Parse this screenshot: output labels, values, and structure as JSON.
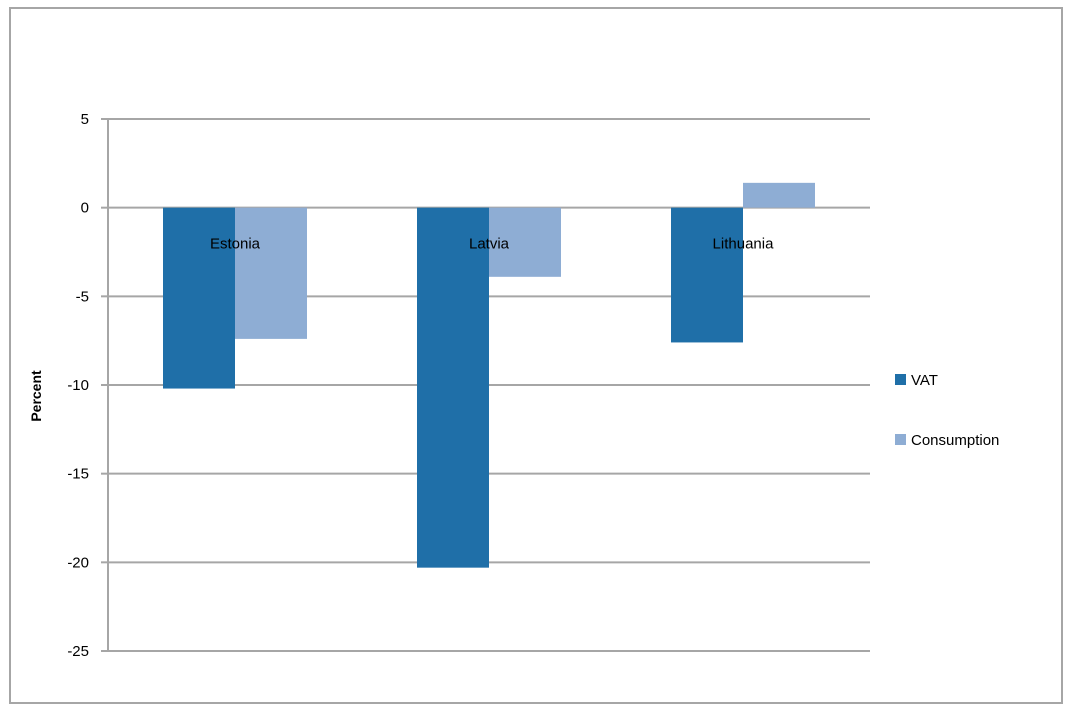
{
  "chart_data": {
    "type": "bar",
    "categories": [
      "Estonia",
      "Latvia",
      "Lithuania"
    ],
    "series": [
      {
        "name": "VAT",
        "values": [
          -10.2,
          -20.3,
          -7.6
        ],
        "color": "#1f6fa8"
      },
      {
        "name": "Consumption",
        "values": [
          -7.4,
          -3.9,
          1.4
        ],
        "color": "#8eadd4"
      }
    ],
    "ylabel": "Percent",
    "ylim": [
      -25,
      5
    ],
    "yticks": [
      5,
      0,
      -5,
      -10,
      -15,
      -20,
      -25
    ],
    "ytick_labels": [
      "5",
      "0",
      "-5",
      "-10",
      "-15",
      "-20",
      "-25"
    ],
    "grid": true,
    "legend": "right",
    "category_labels_position": "below zero line",
    "gridline_color": "#a6a6a6"
  }
}
